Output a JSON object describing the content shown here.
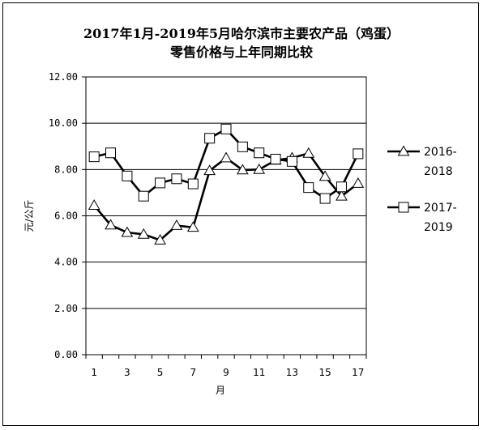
{
  "chart_data": {
    "type": "line",
    "title_line1": "2017年1月-2019年5月哈尔滨市主要农产品（鸡蛋）",
    "title_line2": "零售价格与上年同期比较",
    "xlabel": "月",
    "ylabel": "元/公斤",
    "x": [
      1,
      2,
      3,
      4,
      5,
      6,
      7,
      8,
      9,
      10,
      11,
      12,
      13,
      14,
      15,
      16,
      17
    ],
    "x_tick_labels": [
      "1",
      "3",
      "5",
      "7",
      "9",
      "11",
      "13",
      "15",
      "17"
    ],
    "y_tick_labels": [
      "0.00",
      "2.00",
      "4.00",
      "6.00",
      "8.00",
      "10.00",
      "12.00"
    ],
    "ylim": [
      0,
      12
    ],
    "grid": true,
    "legend_position": "right",
    "series": [
      {
        "name_line1": "2016-",
        "name_line2": "2018",
        "marker": "triangle",
        "values": [
          6.45,
          5.6,
          5.28,
          5.2,
          4.95,
          5.58,
          5.5,
          7.95,
          8.5,
          7.98,
          8.0,
          8.4,
          8.5,
          8.7,
          7.7,
          6.85,
          7.4
        ]
      },
      {
        "name_line1": "2017-",
        "name_line2": "2019",
        "marker": "square",
        "values": [
          8.55,
          8.72,
          7.72,
          6.85,
          7.42,
          7.6,
          7.38,
          9.35,
          9.75,
          8.98,
          8.72,
          8.45,
          8.35,
          7.22,
          6.75,
          7.25,
          8.68
        ]
      }
    ]
  }
}
